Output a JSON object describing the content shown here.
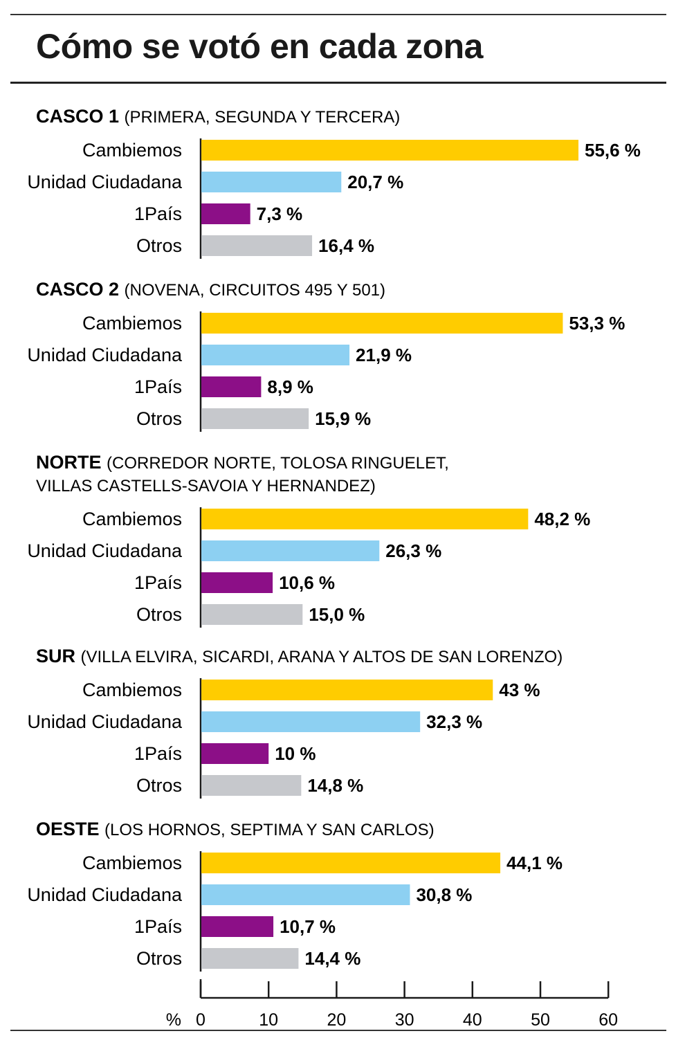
{
  "chart_data": {
    "type": "bar",
    "orientation": "horizontal",
    "title": "Cómo se votó en cada zona",
    "xlabel": "%",
    "xlim": [
      0,
      60
    ],
    "xticks": [
      0,
      10,
      20,
      30,
      40,
      50,
      60
    ],
    "categories": [
      "Cambiemos",
      "Unidad Ciudadana",
      "1País",
      "Otros"
    ],
    "colors": [
      "#ffcc00",
      "#8dd0f2",
      "#8c0f87",
      "#c6c8cc"
    ],
    "groups": [
      {
        "name": "CASCO 1",
        "desc_lines": [
          "(PRIMERA, SEGUNDA Y TERCERA)"
        ],
        "values": [
          55.6,
          20.7,
          7.3,
          16.4
        ],
        "labels": [
          "55,6 %",
          "20,7 %",
          "7,3 %",
          "16,4 %"
        ]
      },
      {
        "name": "CASCO 2",
        "desc_lines": [
          "(NOVENA, CIRCUITOS 495 Y 501)"
        ],
        "values": [
          53.3,
          21.9,
          8.9,
          15.9
        ],
        "labels": [
          "53,3 %",
          "21,9 %",
          "8,9 %",
          "15,9 %"
        ]
      },
      {
        "name": "NORTE",
        "desc_lines": [
          "(CORREDOR NORTE, TOLOSA RINGUELET,",
          "VILLAS CASTELLS-SAVOIA Y HERNANDEZ)"
        ],
        "values": [
          48.2,
          26.3,
          10.6,
          15.0
        ],
        "labels": [
          "48,2 %",
          "26,3 %",
          "10,6 %",
          "15,0 %"
        ]
      },
      {
        "name": "SUR",
        "desc_lines": [
          "(VILLA ELVIRA, SICARDI, ARANA Y ALTOS DE SAN LORENZO)"
        ],
        "values": [
          43,
          32.3,
          10,
          14.8
        ],
        "labels": [
          "43 %",
          "32,3 %",
          "10 %",
          "14,8 %"
        ]
      },
      {
        "name": "OESTE",
        "desc_lines": [
          "(LOS HORNOS, SEPTIMA Y SAN CARLOS)"
        ],
        "values": [
          44.1,
          30.8,
          10.7,
          14.4
        ],
        "labels": [
          "44,1 %",
          "30,8 %",
          "10,7 %",
          "14,4 %"
        ]
      }
    ]
  }
}
